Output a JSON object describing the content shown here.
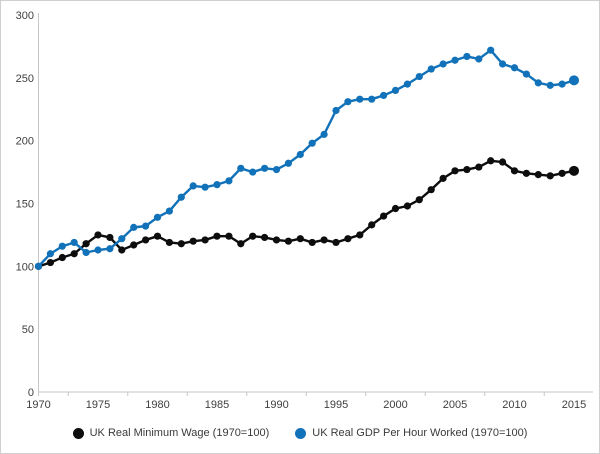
{
  "chart_data": {
    "type": "line",
    "title": "",
    "xlabel": "",
    "ylabel": "",
    "x": [
      1970,
      1971,
      1972,
      1973,
      1974,
      1975,
      1976,
      1977,
      1978,
      1979,
      1980,
      1981,
      1982,
      1983,
      1984,
      1985,
      1986,
      1987,
      1988,
      1989,
      1990,
      1991,
      1992,
      1993,
      1994,
      1995,
      1996,
      1997,
      1998,
      1999,
      2000,
      2001,
      2002,
      2003,
      2004,
      2005,
      2006,
      2007,
      2008,
      2009,
      2010,
      2011,
      2012,
      2013,
      2014,
      2015
    ],
    "xticks": [
      1970,
      1975,
      1980,
      1985,
      1990,
      1995,
      2000,
      2005,
      2010,
      2015
    ],
    "yticks": [
      0,
      50,
      100,
      150,
      200,
      250,
      300
    ],
    "ylim": [
      0,
      300
    ],
    "grid": false,
    "legend_position": "bottom",
    "marker": "circle",
    "axis_color": "#c6c6c6",
    "label_color": "#404040",
    "series": [
      {
        "name": "UK Real Minimum Wage (1970=100)",
        "color": "#0d0d0d",
        "values": [
          100,
          103,
          107,
          110,
          118,
          125,
          123,
          113,
          117,
          121,
          124,
          119,
          118,
          120,
          121,
          124,
          124,
          118,
          124,
          123,
          121,
          120,
          122,
          119,
          121,
          119,
          122,
          125,
          133,
          140,
          146,
          148,
          153,
          161,
          170,
          176,
          177,
          179,
          184,
          183,
          176,
          174,
          173,
          172,
          174,
          176
        ]
      },
      {
        "name": "UK Real GDP Per Hour Worked (1970=100)",
        "color": "#1272b9",
        "values": [
          100,
          110,
          116,
          119,
          111,
          113,
          114,
          122,
          131,
          132,
          139,
          144,
          155,
          164,
          163,
          165,
          168,
          178,
          175,
          178,
          177,
          182,
          189,
          198,
          205,
          224,
          231,
          233,
          233,
          236,
          240,
          245,
          251,
          257,
          261,
          264,
          267,
          265,
          272,
          261,
          258,
          253,
          246,
          244,
          245,
          248
        ]
      }
    ]
  }
}
